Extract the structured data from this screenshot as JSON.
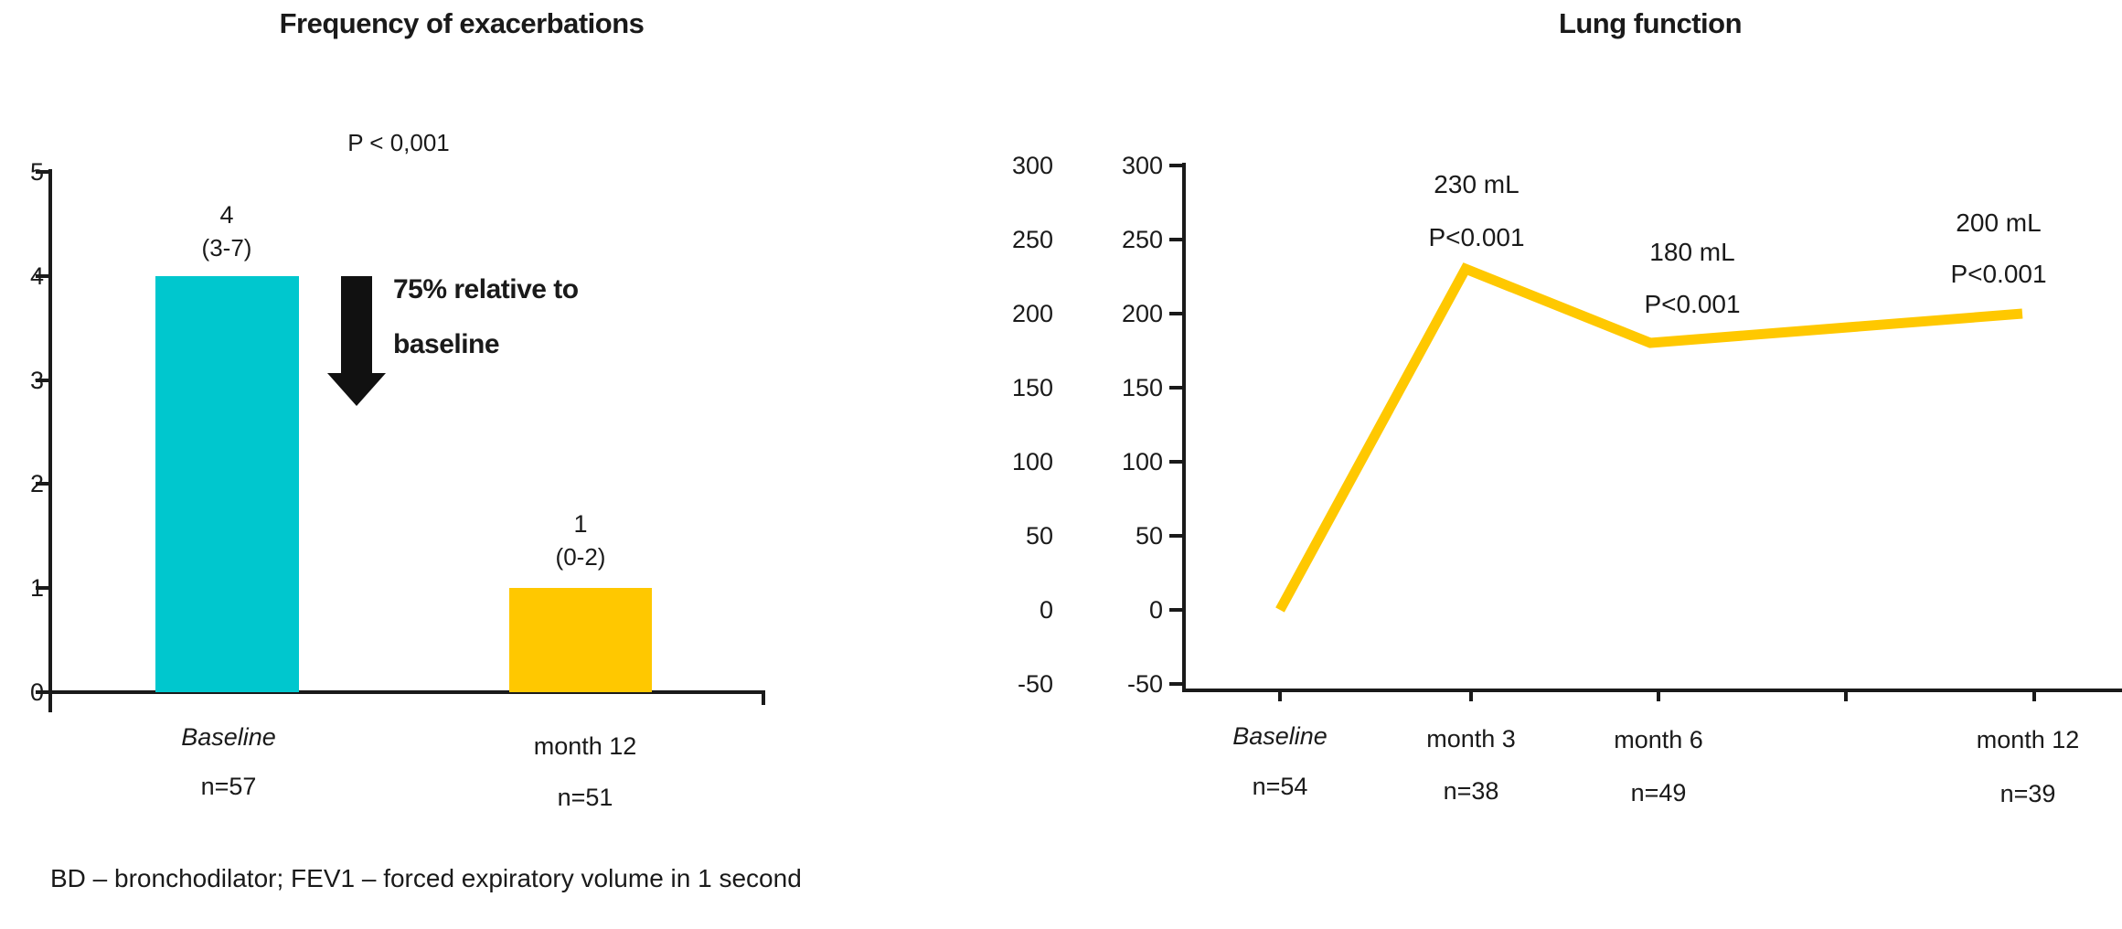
{
  "left_chart": {
    "title": "Frequency of exacerbations",
    "p_value": "P < 0,001",
    "annotation": {
      "line1": "75% relative to",
      "line2": "baseline"
    },
    "bars": [
      {
        "label": "Baseline",
        "n_label": "n=57",
        "value_label": "4",
        "range_label": "(3-7)"
      },
      {
        "label": "month 12",
        "n_label": "n=51",
        "value_label": "1",
        "range_label": "(0-2)"
      }
    ]
  },
  "right_chart": {
    "title": "Lung function",
    "points": [
      {
        "label": "Baseline",
        "n_label": "n=54",
        "value_label": "",
        "p_label": ""
      },
      {
        "label": "month 3",
        "n_label": "n=38",
        "value_label": "230 mL",
        "p_label": "P<0.001"
      },
      {
        "label": "month 6",
        "n_label": "n=49",
        "value_label": "180 mL",
        "p_label": "P<0.001"
      },
      {
        "label": "month 12",
        "n_label": "n=39",
        "value_label": "200 mL",
        "p_label": "P<0.001"
      }
    ]
  },
  "footer": {
    "abbreviations": "BD – bronchodilator; FEV1 – forced expiratory volume in 1 second"
  },
  "colors": {
    "teal": "#00C7CE",
    "yellow": "#FFC800",
    "black": "#111111"
  },
  "chart_data": [
    {
      "type": "bar",
      "title": "Frequency of exacerbations",
      "categories": [
        "Baseline",
        "month 12"
      ],
      "values": [
        4,
        1
      ],
      "value_labels": [
        "4 (3-7)",
        "1 (0-2)"
      ],
      "n": [
        57,
        51
      ],
      "p_value": "P < 0,001",
      "annotation": "75% relative to baseline (downward arrow = decrease)",
      "xlabel": "",
      "ylabel": "",
      "ylim": [
        0,
        5
      ],
      "y_ticks": [
        5,
        4,
        3,
        2,
        1,
        0
      ],
      "grid": false,
      "bar_colors": [
        "#00C7CE",
        "#FFC800"
      ]
    },
    {
      "type": "line",
      "title": "Lung function",
      "categories": [
        "Baseline",
        "month 3",
        "month 6",
        "month 12"
      ],
      "values": [
        0,
        230,
        180,
        200
      ],
      "unit": "mL",
      "n": [
        54,
        38,
        49,
        39
      ],
      "p_values": [
        "",
        "P<0.001",
        "P<0.001",
        "P<0.001"
      ],
      "xlabel": "",
      "ylabel": "",
      "ylim": [
        -50,
        300
      ],
      "y_ticks": [
        300,
        250,
        200,
        150,
        100,
        50,
        0,
        -50
      ],
      "x_axis_note": "unlabeled tick between month 6 and month 12 (month 9)",
      "grid": false,
      "line_color": "#FFC800"
    }
  ]
}
